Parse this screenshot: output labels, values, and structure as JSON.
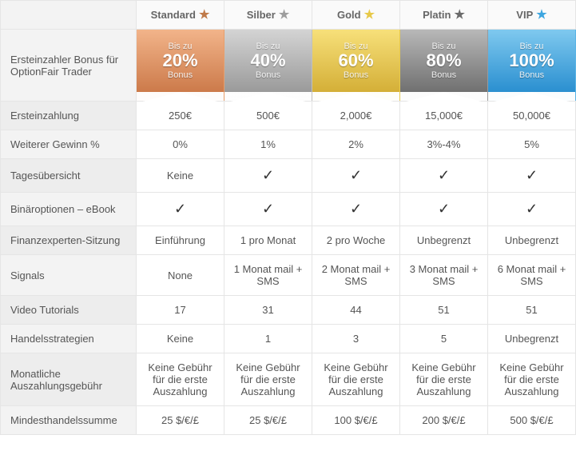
{
  "tiers": [
    {
      "name": "Standard",
      "star_color": "#c07a4a",
      "grad_top": "#f2b48a",
      "grad_bot": "#cc7a4a",
      "border": "#e89e6a"
    },
    {
      "name": "Silber",
      "star_color": "#9e9e9e",
      "grad_top": "#d4d4d4",
      "grad_bot": "#9a9a9a",
      "border": "#c0c0c0"
    },
    {
      "name": "Gold",
      "star_color": "#e7c94a",
      "grad_top": "#f7e07a",
      "grad_bot": "#d4af37",
      "border": "#e7c94a"
    },
    {
      "name": "Platin",
      "star_color": "#6b6b6b",
      "grad_top": "#b8b8b8",
      "grad_bot": "#707070",
      "border": "#9a9a9a"
    },
    {
      "name": "VIP",
      "star_color": "#3ea6e0",
      "grad_top": "#7fc9ef",
      "grad_bot": "#2a8fd0",
      "border": "#5bb4e5"
    }
  ],
  "bonus_label": "Ersteinzahler Bonus für OptionFair Trader",
  "bonus_prefix": "Bis zu",
  "bonus_suffix": "Bonus",
  "bonus_pcts": [
    "20%",
    "40%",
    "60%",
    "80%",
    "100%"
  ],
  "rows": [
    {
      "label": "Ersteinzahlung",
      "vals": [
        "250€",
        "500€",
        "2,000€",
        "15,000€",
        "50,000€"
      ]
    },
    {
      "label": "Weiterer Gewinn %",
      "vals": [
        "0%",
        "1%",
        "2%",
        "3%-4%",
        "5%"
      ]
    },
    {
      "label": "Tagesübersicht",
      "vals": [
        "Keine",
        "✓",
        "✓",
        "✓",
        "✓"
      ]
    },
    {
      "label": "Binäroptionen – eBook",
      "vals": [
        "✓",
        "✓",
        "✓",
        "✓",
        "✓"
      ]
    },
    {
      "label": "Finanzexperten-Sitzung",
      "vals": [
        "Einführung",
        "1 pro Monat",
        "2 pro Woche",
        "Unbegrenzt",
        "Unbegrenzt"
      ]
    },
    {
      "label": "Signals",
      "vals": [
        "None",
        "1 Monat mail + SMS",
        "2 Monat mail + SMS",
        "3 Monat mail + SMS",
        "6 Monat mail + SMS"
      ]
    },
    {
      "label": "Video Tutorials",
      "vals": [
        "17",
        "31",
        "44",
        "51",
        "51"
      ]
    },
    {
      "label": "Handelsstrategien",
      "vals": [
        "Keine",
        "1",
        "3",
        "5",
        "Unbegrenzt"
      ]
    },
    {
      "label": "Monatliche Auszahlungsgebühr",
      "vals": [
        "Keine Gebühr für die erste Auszahlung",
        "Keine Gebühr für die erste Auszahlung",
        "Keine Gebühr für die erste Auszahlung",
        "Keine Gebühr für die erste Auszahlung",
        "Keine Gebühr für die erste Auszahlung"
      ]
    },
    {
      "label": "Mindesthandelssumme",
      "vals": [
        "25 $/€/£",
        "25 $/€/£",
        "100 $/€/£",
        "200 $/€/£",
        "500 $/€/£"
      ]
    }
  ]
}
